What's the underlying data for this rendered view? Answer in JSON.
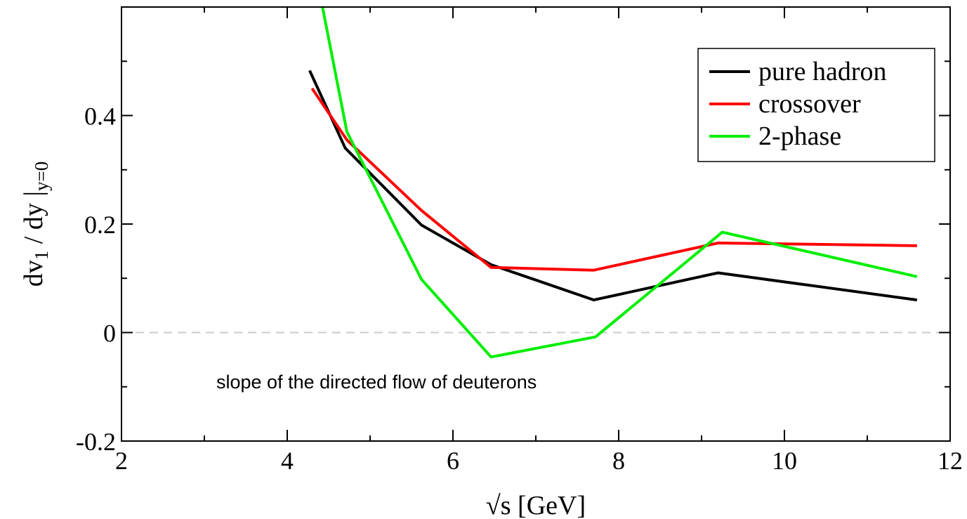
{
  "chart_data": {
    "type": "line",
    "xlabel": "√s [GeV]",
    "ylabel": {
      "main": "dv",
      "sub1": "1",
      "mid": " / dy |",
      "sub2": "y=0"
    },
    "xlim": [
      2,
      12
    ],
    "ylim": [
      -0.2,
      0.6
    ],
    "x_ticks": [
      2,
      4,
      6,
      8,
      10,
      12
    ],
    "y_ticks": [
      -0.2,
      0,
      0.2,
      0.4
    ],
    "x_tick_labels": [
      "2",
      "4",
      "6",
      "8",
      "10",
      "12"
    ],
    "y_tick_labels": [
      "-0.2",
      "0",
      "0.2",
      "0.4"
    ],
    "grid": false,
    "zero_line": true,
    "legend_position": "top-right",
    "annotation": "slope of the directed flow of deuterons",
    "series": [
      {
        "name": "pure hadron",
        "color": "#000000",
        "x": [
          4.27,
          4.7,
          5.62,
          6.46,
          7.7,
          9.2,
          11.6
        ],
        "y": [
          0.483,
          0.34,
          0.198,
          0.125,
          0.06,
          0.11,
          0.06
        ]
      },
      {
        "name": "crossover",
        "color": "#ff0000",
        "x": [
          4.3,
          4.72,
          5.62,
          6.46,
          7.7,
          9.2,
          11.6
        ],
        "y": [
          0.45,
          0.355,
          0.225,
          0.12,
          0.115,
          0.165,
          0.16
        ]
      },
      {
        "name": "2-phase",
        "color": "#00ee00",
        "x": [
          4.4,
          4.72,
          5.62,
          6.46,
          7.72,
          9.25,
          11.6
        ],
        "y": [
          0.62,
          0.37,
          0.098,
          -0.045,
          -0.008,
          0.185,
          0.103
        ]
      }
    ]
  }
}
